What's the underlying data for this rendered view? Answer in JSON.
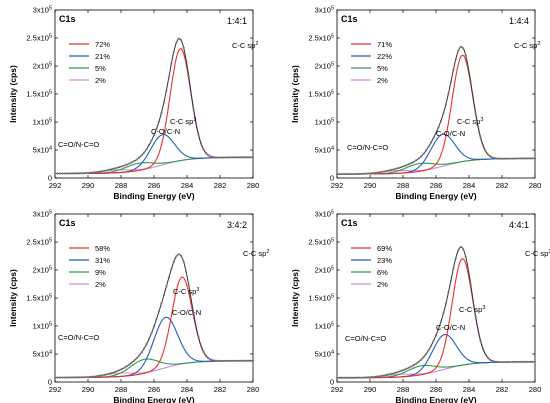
{
  "chart_data": [
    {
      "type": "line",
      "title": "C1s",
      "ratio_label": "1:4:1",
      "xlabel": "Binding Energy (eV)",
      "ylabel": "Intensity (cps)",
      "xlim": [
        292,
        280
      ],
      "ylim": [
        0,
        300000
      ],
      "x_ticks": [
        "292",
        "290",
        "288",
        "286",
        "284",
        "282",
        "280"
      ],
      "y_ticks": [
        "0",
        "5x10⁴",
        "1x10⁵",
        "1.5x10⁵",
        "2x10⁵",
        "2.5x10⁵",
        "3x10⁵"
      ],
      "background": {
        "start": 37000,
        "end": 8000
      },
      "peaks": [
        {
          "name": "C-C sp²",
          "label": "C-C sp²",
          "center": 284.4,
          "amp": 200000,
          "sigma": 0.62,
          "color": "#e8322c",
          "percent": "72%"
        },
        {
          "name": "C-C sp³",
          "label": "C-C sp³",
          "center": 285.5,
          "amp": 54000,
          "sigma": 0.72,
          "color": "#1f5fbf",
          "percent": "21%"
        },
        {
          "name": "C-O/C-N",
          "label": "C-O/C-N",
          "center": 286.9,
          "amp": 13000,
          "sigma": 0.85,
          "color": "#2e9e4a",
          "percent": "5%"
        },
        {
          "name": "C=O/N-C=O",
          "label": "C=O/N-C=O",
          "center": 288.3,
          "amp": 5000,
          "sigma": 0.9,
          "color": "#d98ed9",
          "percent": "2%"
        }
      ]
    },
    {
      "type": "line",
      "title": "C1s",
      "ratio_label": "1:4:4",
      "xlabel": "Binding Energy (eV)",
      "ylabel": "Intensity (cps)",
      "xlim": [
        292,
        280
      ],
      "ylim": [
        0,
        300000
      ],
      "x_ticks": [
        "292",
        "290",
        "288",
        "286",
        "284",
        "282",
        "280"
      ],
      "y_ticks": [
        "0",
        "5x10⁴",
        "1x10⁵",
        "1.5x10⁵",
        "2x10⁵",
        "2.5x10⁵",
        "3x10⁵"
      ],
      "background": {
        "start": 35000,
        "end": 7000
      },
      "peaks": [
        {
          "name": "C-C sp²",
          "label": "C-C sp²",
          "center": 284.4,
          "amp": 190000,
          "sigma": 0.62,
          "color": "#e8322c",
          "percent": "71%"
        },
        {
          "name": "C-C sp³",
          "label": "C-C sp³",
          "center": 285.6,
          "amp": 57000,
          "sigma": 0.72,
          "color": "#1f5fbf",
          "percent": "22%"
        },
        {
          "name": "C-O/C-N",
          "label": "C-O/C-N",
          "center": 287.0,
          "amp": 14000,
          "sigma": 0.85,
          "color": "#2e9e4a",
          "percent": "5%"
        },
        {
          "name": "C=O/N-C=O",
          "label": "C=O/N-C=O",
          "center": 288.4,
          "amp": 5000,
          "sigma": 0.9,
          "color": "#d98ed9",
          "percent": "2%"
        }
      ]
    },
    {
      "type": "line",
      "title": "C1s",
      "ratio_label": "3:4:2",
      "xlabel": "Binding Energy (eV)",
      "ylabel": "Intensity (cps)",
      "xlim": [
        292,
        280
      ],
      "ylim": [
        0,
        300000
      ],
      "x_ticks": [
        "292",
        "290",
        "288",
        "286",
        "284",
        "282",
        "280"
      ],
      "y_ticks": [
        "0",
        "5x10⁴",
        "1x10⁵",
        "1.5x10⁵",
        "2x10⁵",
        "2.5x10⁵",
        "3x10⁵"
      ],
      "background": {
        "start": 38000,
        "end": 8000
      },
      "peaks": [
        {
          "name": "C-C sp²",
          "label": "C-C sp²",
          "center": 284.3,
          "amp": 155000,
          "sigma": 0.62,
          "color": "#e8322c",
          "percent": "58%"
        },
        {
          "name": "C-C sp³",
          "label": "C-C sp³",
          "center": 285.3,
          "amp": 90000,
          "sigma": 0.72,
          "color": "#1f5fbf",
          "percent": "31%"
        },
        {
          "name": "C-O/C-N",
          "label": "C-O/C-N",
          "center": 286.6,
          "amp": 25000,
          "sigma": 0.85,
          "color": "#2e9e4a",
          "percent": "9%"
        },
        {
          "name": "C=O/N-C=O",
          "label": "C=O/N-C=O",
          "center": 288.1,
          "amp": 6000,
          "sigma": 0.9,
          "color": "#d98ed9",
          "percent": "2%"
        }
      ]
    },
    {
      "type": "line",
      "title": "C1s",
      "ratio_label": "4:4:1",
      "xlabel": "Binding Energy (eV)",
      "ylabel": "Intensity (cps)",
      "xlim": [
        292,
        280
      ],
      "ylim": [
        0,
        300000
      ],
      "x_ticks": [
        "292",
        "290",
        "288",
        "286",
        "284",
        "282",
        "280"
      ],
      "y_ticks": [
        "0",
        "5x10⁴",
        "1x10⁵",
        "1.5x10⁵",
        "2x10⁵",
        "2.5x10⁵",
        "3x10⁵"
      ],
      "background": {
        "start": 36000,
        "end": 7500
      },
      "peaks": [
        {
          "name": "C-C sp²",
          "label": "C-C sp²",
          "center": 284.4,
          "amp": 190000,
          "sigma": 0.62,
          "color": "#e8322c",
          "percent": "69%"
        },
        {
          "name": "C-C sp³",
          "label": "C-C sp³",
          "center": 285.5,
          "amp": 62000,
          "sigma": 0.72,
          "color": "#1f5fbf",
          "percent": "23%"
        },
        {
          "name": "C-O/C-N",
          "label": "C-O/C-N",
          "center": 286.9,
          "amp": 16000,
          "sigma": 0.85,
          "color": "#2e9e4a",
          "percent": "6%"
        },
        {
          "name": "C=O/N-C=O",
          "label": "C=O/N-C=O",
          "center": 288.3,
          "amp": 5000,
          "sigma": 0.9,
          "color": "#d98ed9",
          "percent": "2%"
        }
      ]
    }
  ]
}
